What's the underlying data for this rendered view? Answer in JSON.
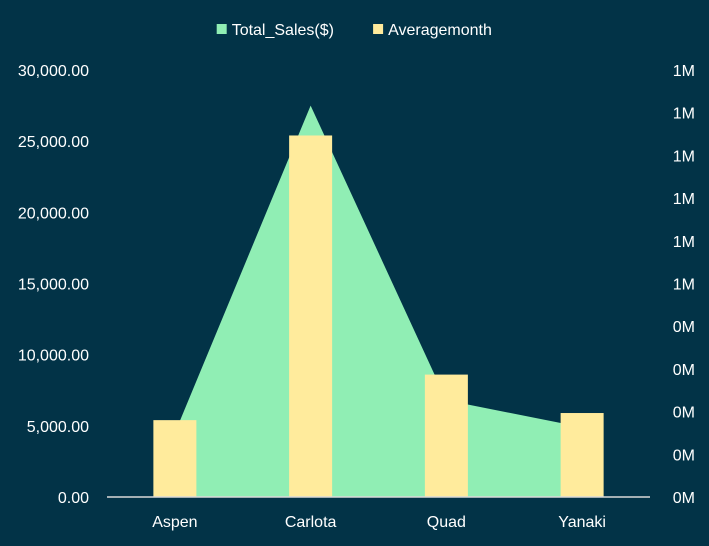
{
  "chart_data": {
    "type": "bar",
    "categories": [
      "Aspen",
      "Carlota",
      "Quad",
      "Yanaki"
    ],
    "series": [
      {
        "name": "Total_Sales($)",
        "type": "area",
        "axis": "left",
        "color": "#90EEB4",
        "values": [
          4500,
          27500,
          6800,
          4900
        ]
      },
      {
        "name": "Averagemonth",
        "type": "bar",
        "axis": "right",
        "color": "#FFEB9C",
        "values": [
          5400,
          25400,
          8600,
          5900
        ]
      }
    ],
    "y_left": {
      "ylim": [
        0,
        30000
      ],
      "ticks": [
        "0.00",
        "5,000.00",
        "10,000.00",
        "15,000.00",
        "20,000.00",
        "25,000.00",
        "30,000.00"
      ]
    },
    "y_right": {
      "ticks": [
        "0M",
        "0M",
        "0M",
        "0M",
        "0M",
        "1M",
        "1M",
        "1M",
        "1M",
        "1M",
        "1M"
      ]
    },
    "legend": {
      "position": "top-center"
    },
    "colors": {
      "background": "#023347",
      "axis_line": "#d9d9d9",
      "text": "#ffffff"
    }
  }
}
